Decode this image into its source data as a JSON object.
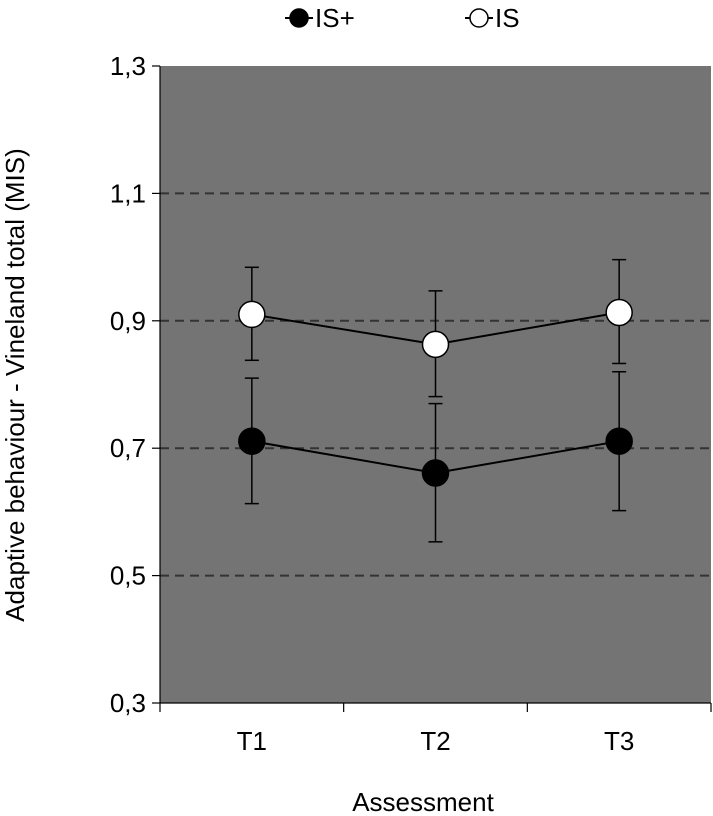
{
  "chart_data": {
    "type": "line",
    "xlabel": "Assessment",
    "ylabel": "Adaptive behaviour - Vineland total (MIS)",
    "categories": [
      "T1",
      "T2",
      "T3"
    ],
    "ylim": [
      0.3,
      1.3
    ],
    "yticks": [
      0.3,
      0.5,
      0.7,
      0.9,
      1.1,
      1.3
    ],
    "ytick_labels": [
      "0,3",
      "0,5",
      "0,7",
      "0,9",
      "1,1",
      "1,3"
    ],
    "grid": "horizontal dashed",
    "legend_position": "top",
    "series": [
      {
        "name": "IS+",
        "marker": "filled-circle",
        "color": "#000000",
        "values": [
          0.711,
          0.661,
          0.711
        ],
        "error_upper": [
          0.81,
          0.77,
          0.82
        ],
        "error_lower": [
          0.613,
          0.553,
          0.602
        ]
      },
      {
        "name": "IS",
        "marker": "open-circle",
        "color": "#ffffff",
        "values": [
          0.91,
          0.863,
          0.913
        ],
        "error_upper": [
          0.984,
          0.947,
          0.996
        ],
        "error_lower": [
          0.838,
          0.781,
          0.833
        ]
      }
    ],
    "plot_background": "#747474",
    "grid_color": "#333333"
  }
}
